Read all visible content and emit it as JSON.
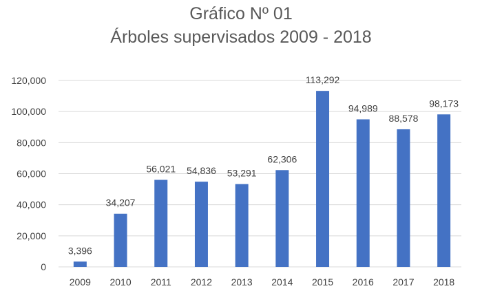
{
  "chart_data": {
    "type": "bar",
    "title": "Gráfico Nº 01",
    "subtitle": "Árboles supervisados 2009 - 2018",
    "xlabel": "",
    "ylabel": "",
    "categories": [
      "2009",
      "2010",
      "2011",
      "2012",
      "2013",
      "2014",
      "2015",
      "2016",
      "2017",
      "2018"
    ],
    "values": [
      3396,
      34207,
      56021,
      54836,
      53291,
      62306,
      113292,
      94989,
      88578,
      98173
    ],
    "data_labels": [
      "3,396",
      "34,207",
      "56,021",
      "54,836",
      "53,291",
      "62,306",
      "113,292",
      "94,989",
      "88,578",
      "98,173"
    ],
    "ylim": [
      0,
      120000
    ],
    "yticks": [
      0,
      20000,
      40000,
      60000,
      80000,
      100000,
      120000
    ],
    "ytick_labels": [
      "0",
      "20,000",
      "40,000",
      "60,000",
      "80,000",
      "100,000",
      "120,000"
    ],
    "grid": true,
    "legend": "none",
    "bar_color": "#4472c4"
  }
}
